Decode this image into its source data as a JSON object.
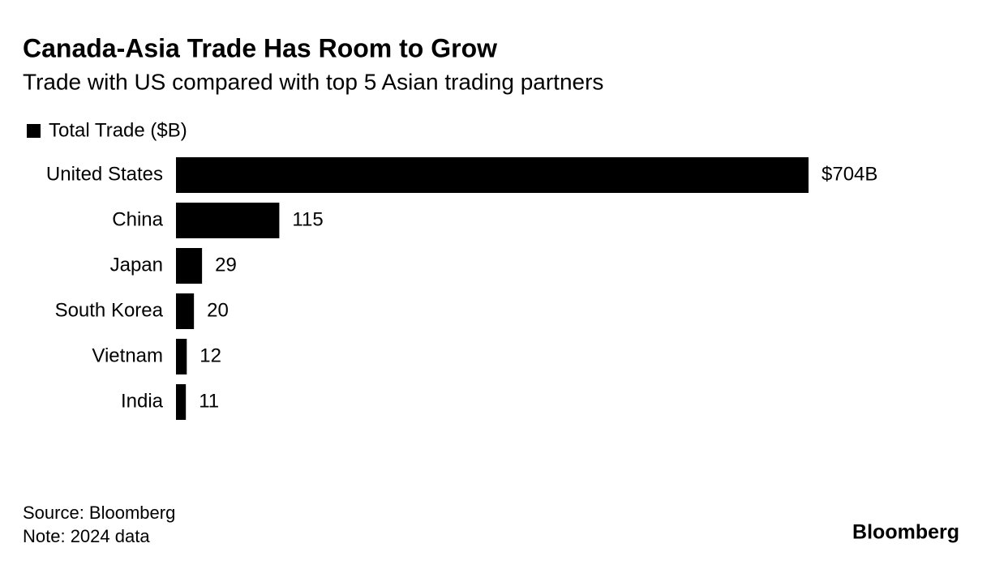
{
  "chart_data": {
    "type": "bar",
    "orientation": "horizontal",
    "title": "Canada-Asia Trade Has Room to Grow",
    "subtitle": "Trade with US compared with top 5 Asian trading partners",
    "categories": [
      "United States",
      "China",
      "Japan",
      "South Korea",
      "Vietnam",
      "India"
    ],
    "series": [
      {
        "name": "Total Trade ($B)",
        "color": "#000000",
        "values": [
          704,
          115,
          29,
          20,
          12,
          11
        ],
        "value_labels": [
          "$704B",
          "115",
          "29",
          "20",
          "12",
          "11"
        ]
      }
    ]
  },
  "footer": {
    "source": "Source: Bloomberg",
    "note": "Note: 2024 data",
    "logo": "Bloomberg"
  }
}
